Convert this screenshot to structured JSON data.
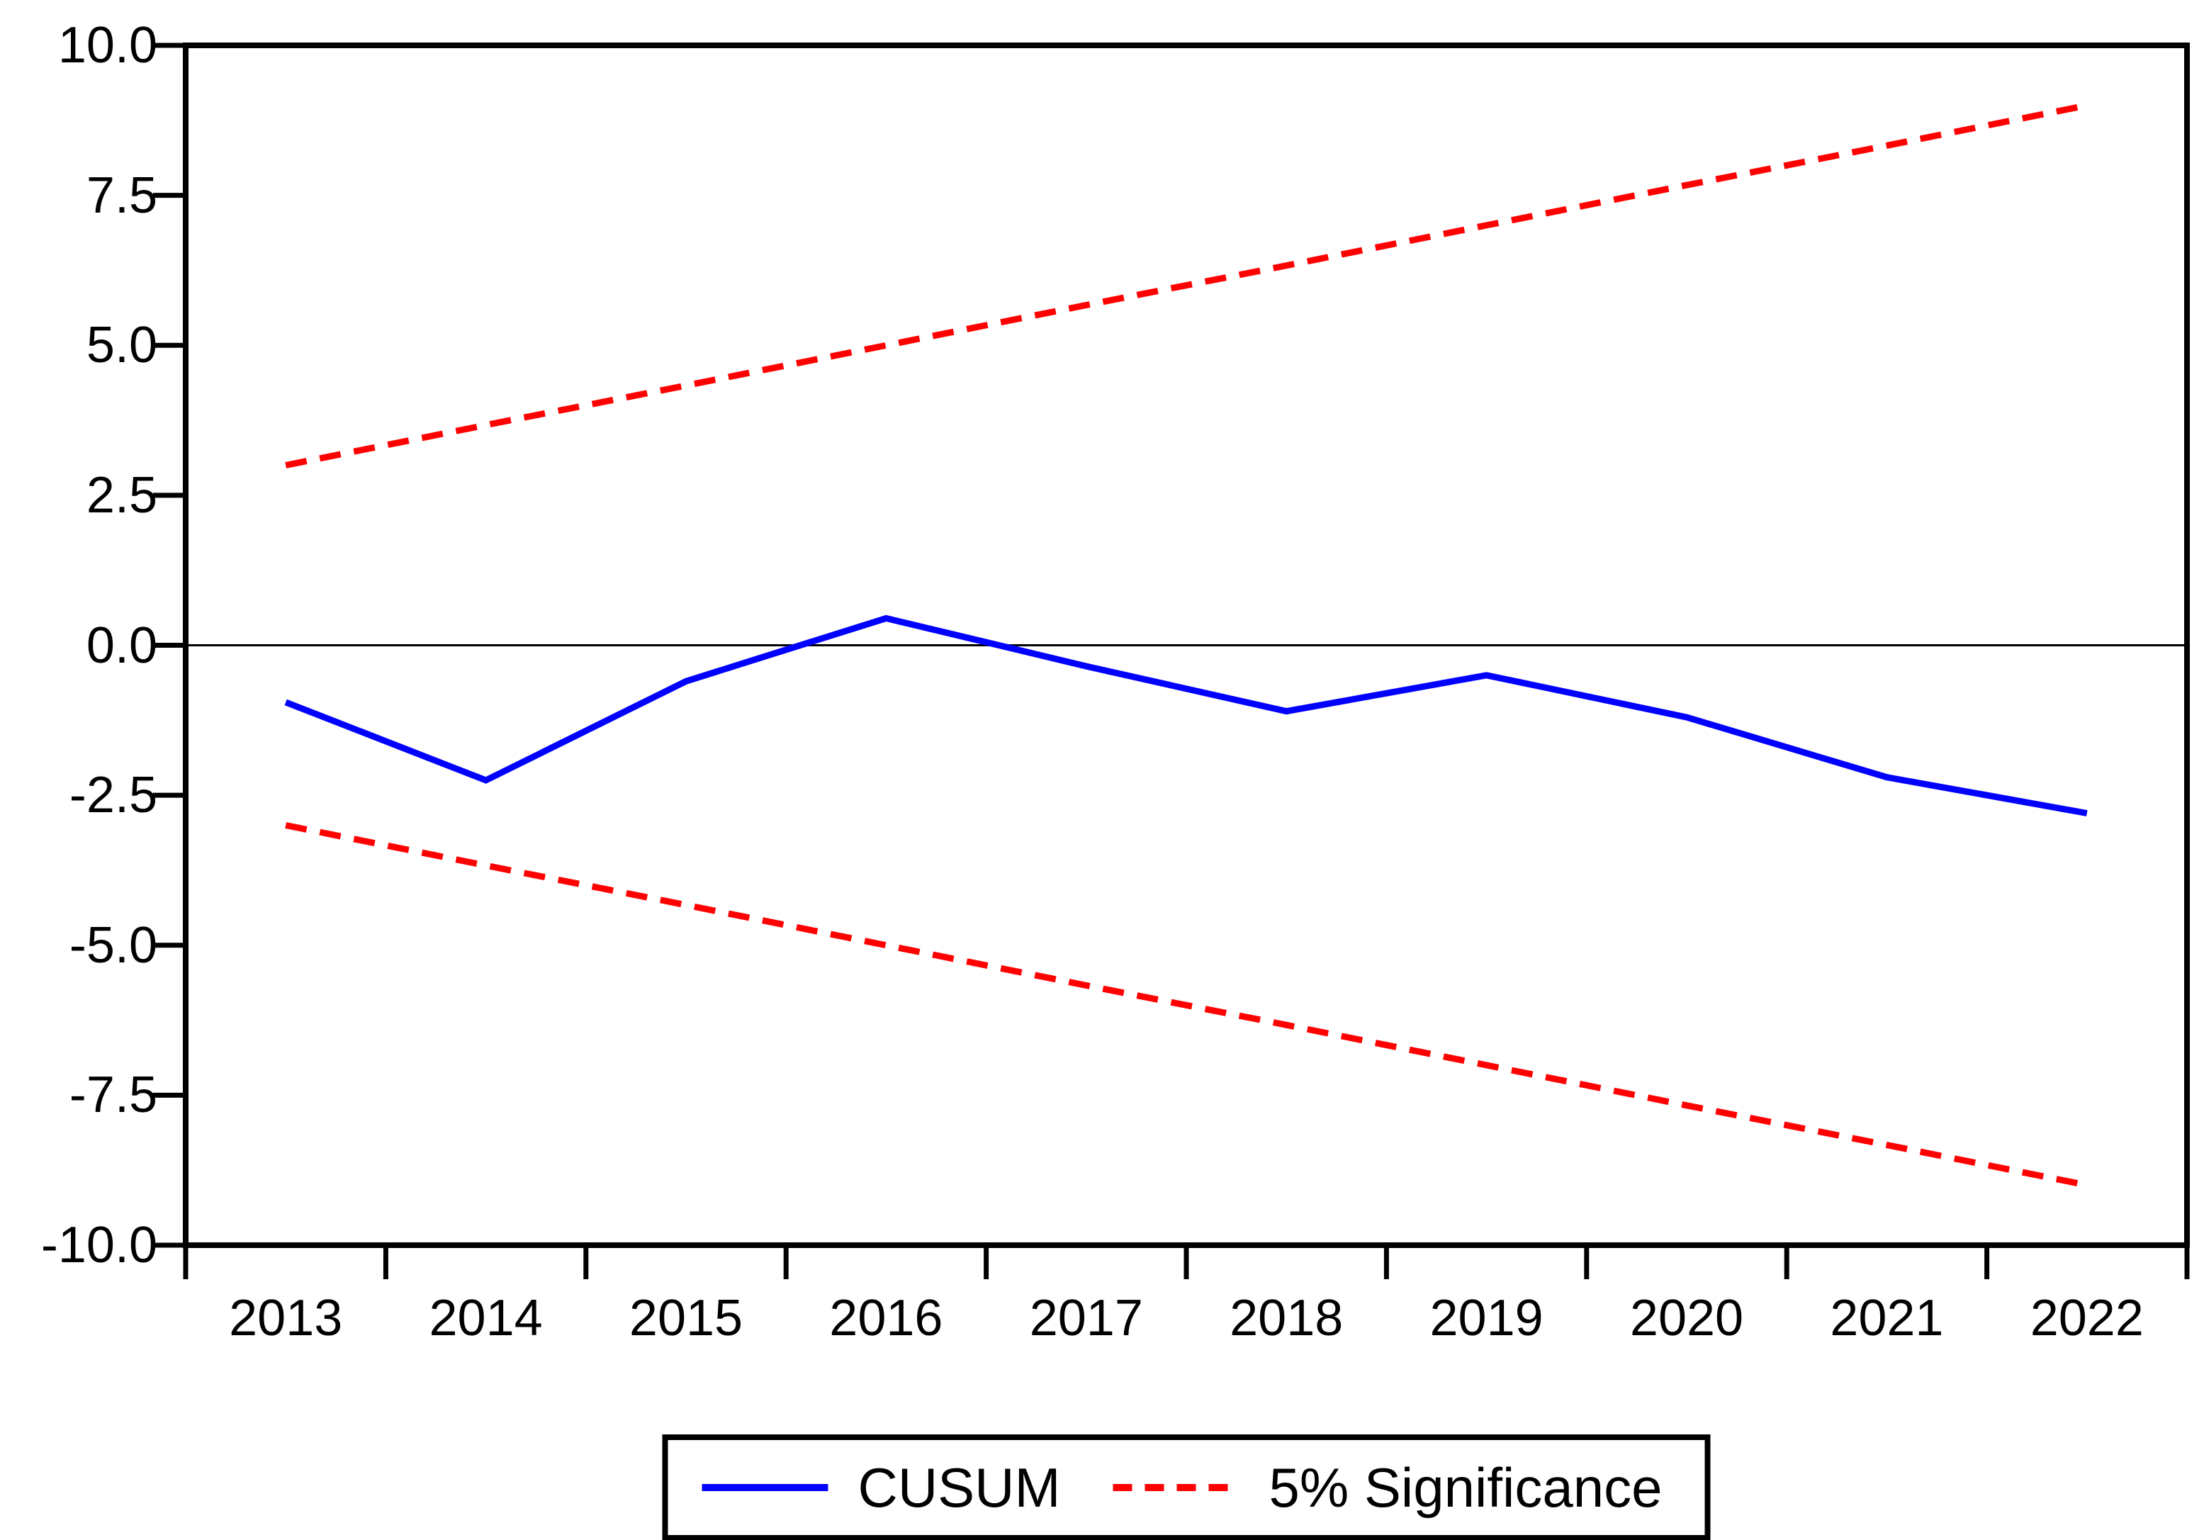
{
  "chart_data": {
    "type": "line",
    "title": "",
    "xlabel": "",
    "ylabel": "",
    "x": [
      2013,
      2014,
      2015,
      2016,
      2017,
      2018,
      2019,
      2020,
      2021,
      2022
    ],
    "x_tick_labels": [
      "2013",
      "2014",
      "2015",
      "2016",
      "2017",
      "2018",
      "2019",
      "2020",
      "2021",
      "2022"
    ],
    "y_tick_labels": [
      "10.0",
      "7.5",
      "5.0",
      "2.5",
      "0.0",
      "-2.5",
      "-5.0",
      "-7.5",
      "-10.0"
    ],
    "y_tick_values": [
      10.0,
      7.5,
      5.0,
      2.5,
      0.0,
      -2.5,
      -5.0,
      -7.5,
      -10.0
    ],
    "ylim": [
      -10.0,
      10.0
    ],
    "xlim_bands": [
      2012.5,
      2022.5
    ],
    "grid": false,
    "zero_line": true,
    "series": [
      {
        "name": "CUSUM",
        "color": "#0000ff",
        "style": "solid",
        "values": [
          -0.95,
          -2.25,
          -0.6,
          0.45,
          -0.35,
          -1.1,
          -0.5,
          -1.2,
          -2.2,
          -2.8
        ]
      },
      {
        "name": "5% Significance (upper bound)",
        "color": "#ff0000",
        "style": "dashed",
        "values": [
          3.0,
          3.67,
          4.33,
          5.0,
          5.67,
          6.33,
          7.0,
          7.67,
          8.33,
          9.0
        ]
      },
      {
        "name": "5% Significance (lower bound)",
        "color": "#ff0000",
        "style": "dashed",
        "values": [
          -3.0,
          -3.67,
          -4.33,
          -5.0,
          -5.67,
          -6.33,
          -7.0,
          -7.67,
          -8.33,
          -9.0
        ]
      }
    ],
    "legend": [
      {
        "label": "CUSUM",
        "color": "#0000ff",
        "style": "solid"
      },
      {
        "label": "5% Significance",
        "color": "#ff0000",
        "style": "dashed"
      }
    ],
    "legend_position": "bottom-center",
    "axis_color": "#000000"
  }
}
